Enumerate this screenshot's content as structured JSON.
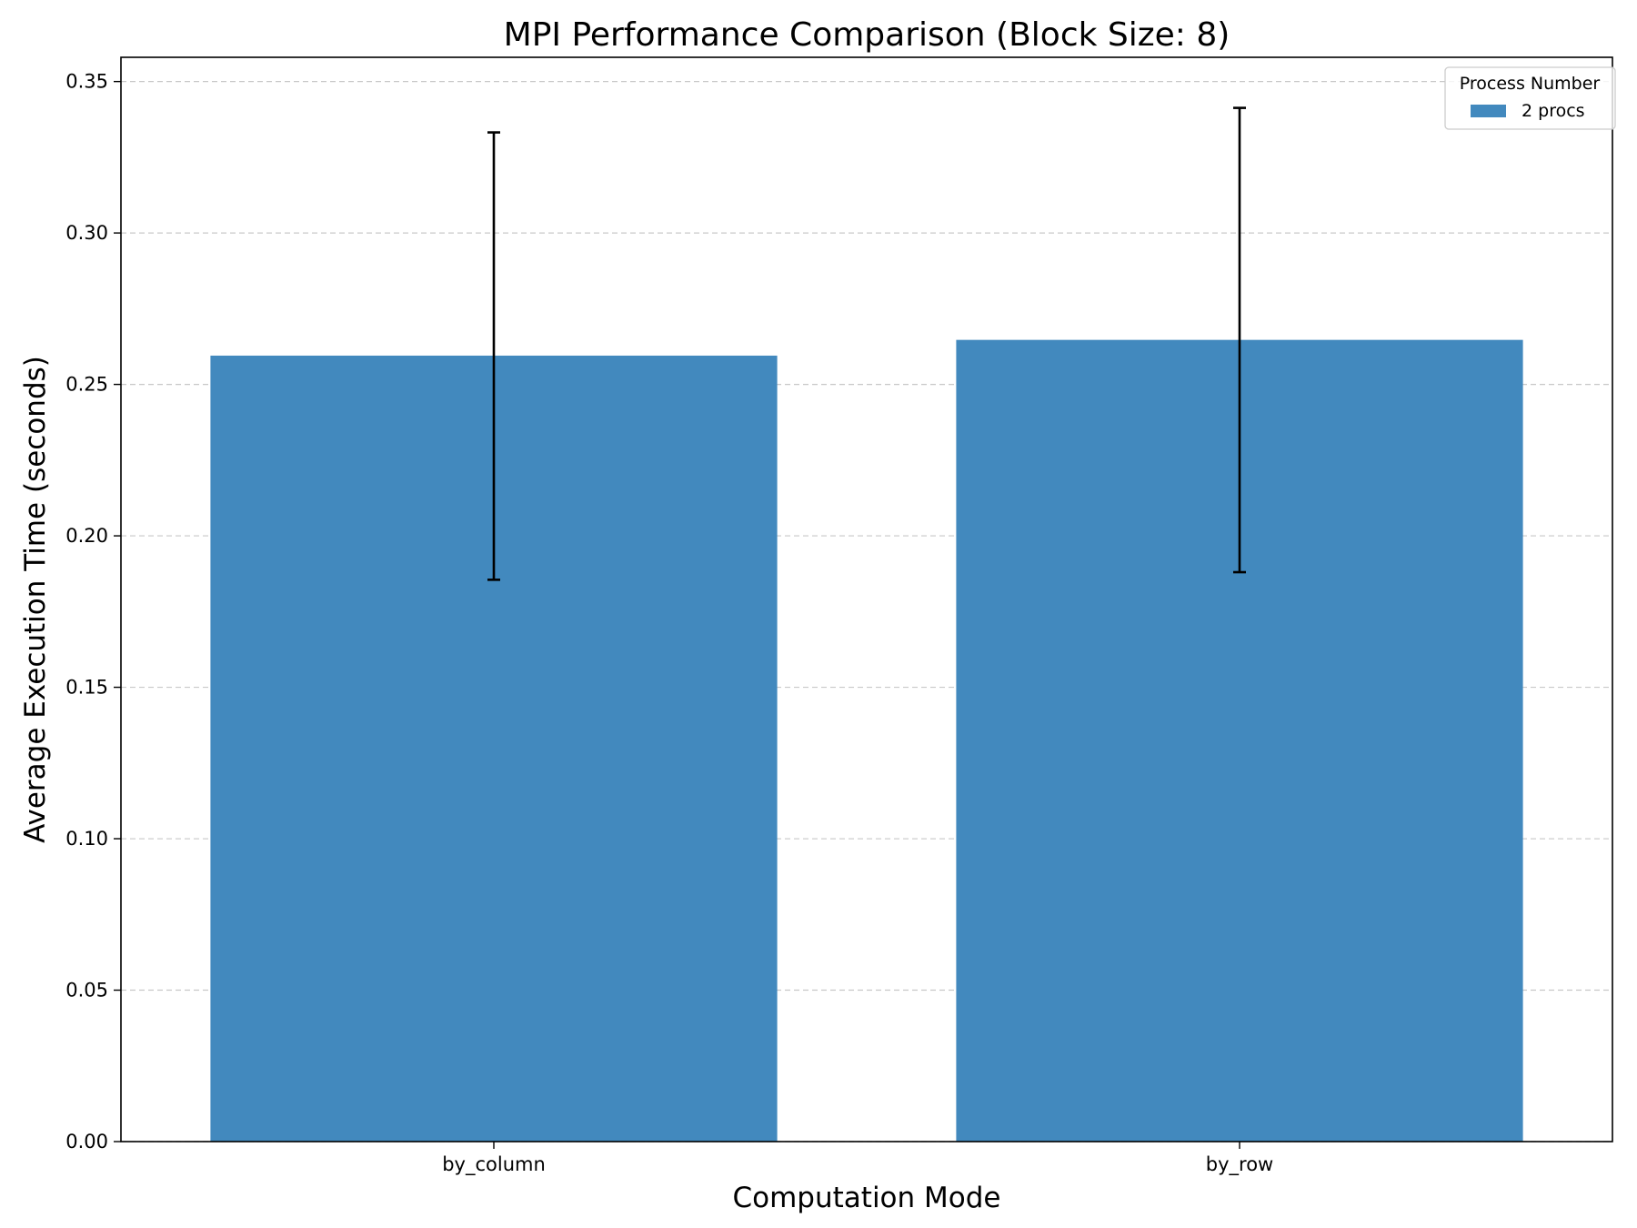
{
  "chart_data": {
    "type": "bar",
    "title": "MPI Performance Comparison (Block Size: 8)",
    "xlabel": "Computation Mode",
    "ylabel": "Average Execution Time (seconds)",
    "categories": [
      "by_column",
      "by_row"
    ],
    "series": [
      {
        "name": "2 procs",
        "color": "#4289be",
        "values": [
          0.2595,
          0.2647
        ],
        "error_low": [
          0.1855,
          0.188
        ],
        "error_high": [
          0.3332,
          0.3413
        ]
      }
    ],
    "ylim": [
      0,
      0.358
    ],
    "yticks": [
      "0.00",
      "0.05",
      "0.10",
      "0.15",
      "0.20",
      "0.25",
      "0.30",
      "0.35"
    ],
    "grid": "y, dashed",
    "legend": {
      "title": "Process Number",
      "placement": "top-right"
    }
  }
}
